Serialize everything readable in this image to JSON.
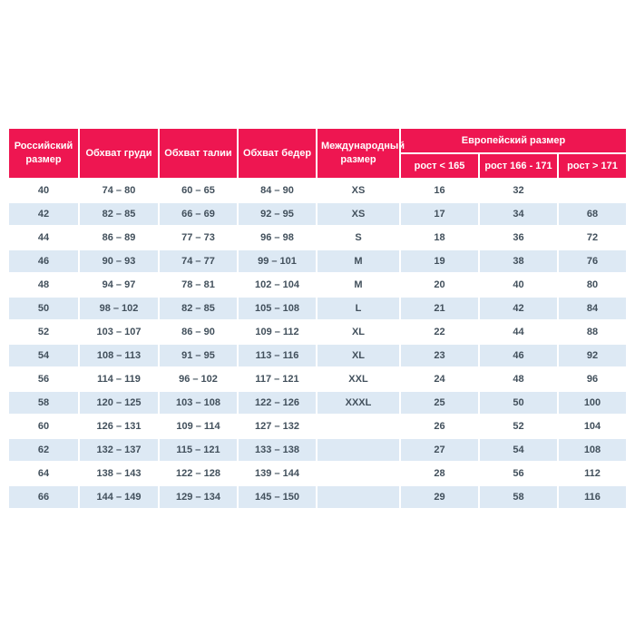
{
  "chart_data": {
    "type": "table",
    "title": "",
    "headers": {
      "russian_size": "Российский размер",
      "chest": "Обхват груди",
      "waist": "Обхват талии",
      "hips": "Обхват бедер",
      "international_size": "Международный размер",
      "european_size": "Европейский размер",
      "height_under_165": "рост < 165",
      "height_166_171": "рост 166 - 171",
      "height_over_171": "рост > 171"
    },
    "columns": [
      "Российский размер",
      "Обхват груди",
      "Обхват талии",
      "Обхват бедер",
      "Международный размер",
      "Европейский размер / рост < 165",
      "Европейский размер / рост 166 - 171",
      "Европейский размер / рост > 171"
    ],
    "rows": [
      [
        "40",
        "74 – 80",
        "60 – 65",
        "84 – 90",
        "XS",
        "16",
        "32",
        ""
      ],
      [
        "42",
        "82 – 85",
        "66 – 69",
        "92 – 95",
        "XS",
        "17",
        "34",
        "68"
      ],
      [
        "44",
        "86 – 89",
        "77 – 73",
        "96 – 98",
        "S",
        "18",
        "36",
        "72"
      ],
      [
        "46",
        "90 – 93",
        "74 – 77",
        "99 – 101",
        "M",
        "19",
        "38",
        "76"
      ],
      [
        "48",
        "94 – 97",
        "78 – 81",
        "102 – 104",
        "M",
        "20",
        "40",
        "80"
      ],
      [
        "50",
        "98 – 102",
        "82 – 85",
        "105 – 108",
        "L",
        "21",
        "42",
        "84"
      ],
      [
        "52",
        "103 – 107",
        "86 – 90",
        "109 – 112",
        "XL",
        "22",
        "44",
        "88"
      ],
      [
        "54",
        "108 – 113",
        "91 – 95",
        "113 – 116",
        "XL",
        "23",
        "46",
        "92"
      ],
      [
        "56",
        "114 – 119",
        "96 – 102",
        "117 – 121",
        "XXL",
        "24",
        "48",
        "96"
      ],
      [
        "58",
        "120 – 125",
        "103 – 108",
        "122 – 126",
        "XXXL",
        "25",
        "50",
        "100"
      ],
      [
        "60",
        "126 – 131",
        "109 – 114",
        "127 – 132",
        "",
        "26",
        "52",
        "104"
      ],
      [
        "62",
        "132 – 137",
        "115 – 121",
        "133 – 138",
        "",
        "27",
        "54",
        "108"
      ],
      [
        "64",
        "138 – 143",
        "122 – 128",
        "139 – 144",
        "",
        "28",
        "56",
        "112"
      ],
      [
        "66",
        "144 – 149",
        "129 – 134",
        "145 – 150",
        "",
        "29",
        "58",
        "116"
      ]
    ],
    "colors": {
      "header_bg": "#ee1651",
      "header_text": "#ffffff",
      "row_alt_bg": "#dde9f4",
      "cell_text": "#42505c",
      "page_bg": "#ffffff"
    },
    "layout": {
      "grid": "off",
      "row_striping": "alternating white / light blue starting with white"
    }
  }
}
